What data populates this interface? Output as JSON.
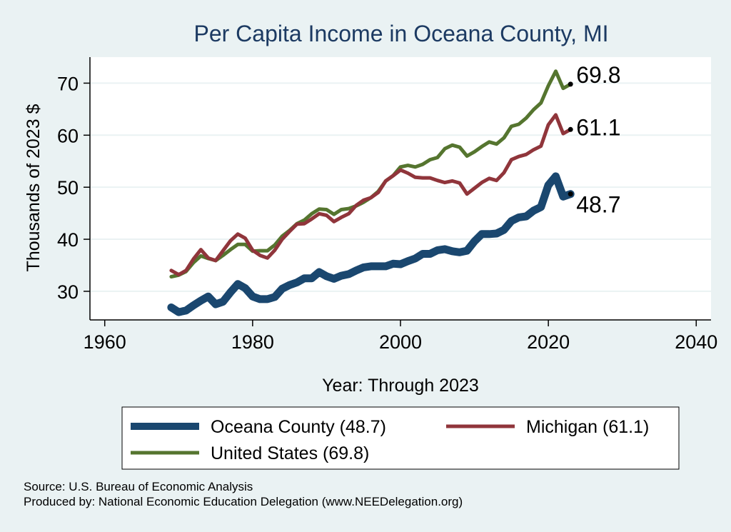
{
  "chart_data": {
    "type": "line",
    "title": "Per Capita Income in Oceana County, MI",
    "xlabel": "Year: Through 2023",
    "ylabel": "Thousands of 2023 $",
    "xlim": [
      1958,
      2042
    ],
    "ylim": [
      24.5,
      75
    ],
    "x_ticks": [
      1960,
      1980,
      2000,
      2020,
      2040
    ],
    "y_ticks": [
      30,
      40,
      50,
      60,
      70
    ],
    "x_tick_labels": [
      "1960",
      "1980",
      "2000",
      "2020",
      "2040"
    ],
    "y_tick_labels": [
      "30",
      "40",
      "50",
      "60",
      "70"
    ],
    "grid": true,
    "legend_position": "bottom",
    "x": [
      1969,
      1970,
      1971,
      1972,
      1973,
      1974,
      1975,
      1976,
      1977,
      1978,
      1979,
      1980,
      1981,
      1982,
      1983,
      1984,
      1985,
      1986,
      1987,
      1988,
      1989,
      1990,
      1991,
      1992,
      1993,
      1994,
      1995,
      1996,
      1997,
      1998,
      1999,
      2000,
      2001,
      2002,
      2003,
      2004,
      2005,
      2006,
      2007,
      2008,
      2009,
      2010,
      2011,
      2012,
      2013,
      2014,
      2015,
      2016,
      2017,
      2018,
      2019,
      2020,
      2021,
      2022,
      2023
    ],
    "series": [
      {
        "name": "Oceana County (48.7)",
        "color": "#1a476f",
        "end_label": "48.7",
        "values": [
          26.9,
          26.0,
          26.3,
          27.3,
          28.2,
          29.0,
          27.5,
          28.0,
          29.8,
          31.4,
          30.6,
          29.0,
          28.5,
          28.5,
          28.9,
          30.5,
          31.2,
          31.7,
          32.5,
          32.5,
          33.7,
          32.9,
          32.4,
          33.0,
          33.3,
          34.0,
          34.6,
          34.8,
          34.8,
          34.8,
          35.3,
          35.2,
          35.8,
          36.3,
          37.2,
          37.2,
          37.9,
          38.1,
          37.7,
          37.5,
          37.8,
          39.6,
          41.0,
          41.0,
          41.1,
          41.8,
          43.5,
          44.2,
          44.4,
          45.5,
          46.2,
          50.4,
          52.1,
          48.2,
          48.7
        ]
      },
      {
        "name": "Michigan (61.1)",
        "color": "#90353b",
        "end_label": "61.1",
        "values": [
          34.0,
          33.2,
          34.0,
          36.2,
          38.0,
          36.4,
          35.9,
          37.8,
          39.7,
          41.0,
          40.2,
          37.9,
          36.9,
          36.4,
          37.9,
          40.0,
          41.5,
          42.9,
          43.0,
          43.9,
          44.9,
          44.6,
          43.4,
          44.2,
          44.9,
          46.5,
          47.5,
          48.0,
          49.0,
          51.2,
          52.2,
          53.3,
          52.7,
          51.9,
          51.8,
          51.8,
          51.3,
          50.9,
          51.2,
          50.8,
          48.7,
          49.8,
          50.9,
          51.7,
          51.3,
          52.8,
          55.3,
          55.9,
          56.3,
          57.2,
          57.9,
          62.0,
          63.9,
          60.3,
          61.1
        ]
      },
      {
        "name": "United States (69.8)",
        "color": "#55752f",
        "end_label": "69.8",
        "values": [
          32.8,
          33.1,
          33.8,
          35.5,
          36.8,
          36.3,
          35.9,
          36.9,
          38.0,
          39.0,
          39.0,
          37.7,
          37.8,
          37.8,
          38.9,
          40.6,
          41.7,
          43.0,
          43.7,
          44.9,
          45.8,
          45.7,
          44.8,
          45.7,
          45.9,
          46.4,
          47.1,
          48.0,
          49.2,
          51.2,
          52.2,
          53.9,
          54.2,
          53.9,
          54.4,
          55.3,
          55.7,
          57.4,
          58.1,
          57.7,
          56.0,
          56.8,
          57.8,
          58.7,
          58.3,
          59.5,
          61.7,
          62.1,
          63.3,
          64.9,
          66.2,
          69.5,
          72.3,
          69.0,
          69.8
        ]
      }
    ]
  },
  "legend": {
    "items": [
      "Oceana County (48.7)",
      "Michigan (61.1)",
      "United States (69.8)"
    ]
  },
  "footer": {
    "source": "Source: U.S. Bureau of Economic Analysis",
    "produced": "Produced by: National Economic Education Delegation (www.NEEDelegation.org)"
  }
}
